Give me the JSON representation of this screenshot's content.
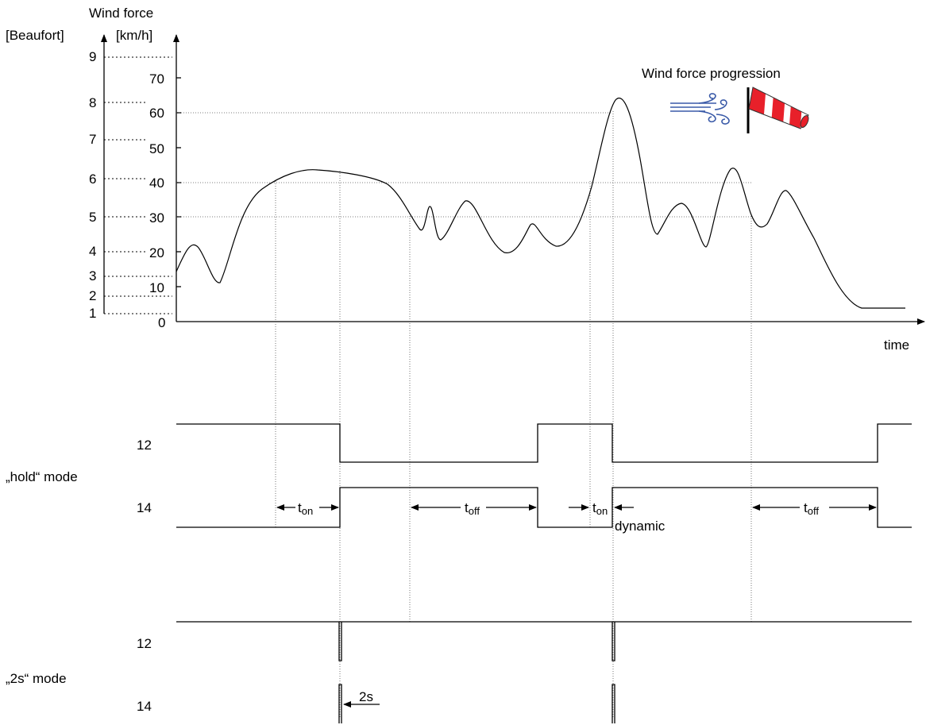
{
  "axes": {
    "y_title": "Wind force",
    "beaufort_unit": "[Beaufort]",
    "kmh_unit": "[km/h]",
    "x_label": "time",
    "beaufort_ticks": [
      "1",
      "2",
      "3",
      "4",
      "5",
      "6",
      "7",
      "8",
      "9"
    ],
    "kmh_ticks": [
      "0",
      "10",
      "20",
      "30",
      "40",
      "50",
      "60",
      "70"
    ]
  },
  "legend": {
    "title": "Wind force progression",
    "icons": [
      "wind-gust-icon",
      "windsock-icon"
    ],
    "windsock_colors": [
      "#e8202a",
      "#ffffff"
    ],
    "wind_color": "#3a5aa8"
  },
  "hold_mode": {
    "label": "„hold“ mode",
    "line_a": "12",
    "line_b": "14",
    "t_on_1_main": "t",
    "t_on_1_sub": "on",
    "t_off_1_main": "t",
    "t_off_1_sub": "off",
    "t_on_2_main": "t",
    "t_on_2_sub": "on",
    "t_off_2_main": "t",
    "t_off_2_sub": "off",
    "dynamic_label": "dynamic"
  },
  "two_s_mode": {
    "label": "„2s“ mode",
    "line_a": "12",
    "line_b": "14",
    "pulse_label": "2s"
  }
}
